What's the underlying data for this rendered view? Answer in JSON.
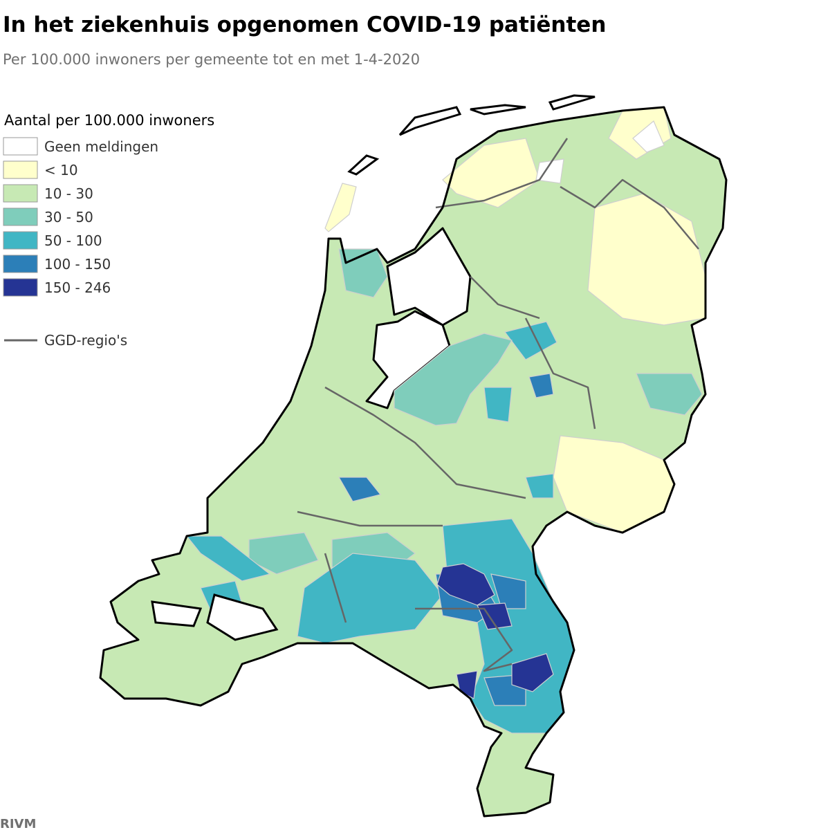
{
  "title": "In het ziekenhuis opgenomen COVID-19 patiënten",
  "subtitle": "Per 100.000 inwoners per gemeente tot en met 1-4-2020",
  "legend": {
    "title": "Aantal per 100.000 inwoners",
    "items": [
      {
        "label": "Geen meldingen",
        "color": "#ffffff"
      },
      {
        "label": "< 10",
        "color": "#ffffcc"
      },
      {
        "label": "10 - 30",
        "color": "#c7e9b4"
      },
      {
        "label": "30 - 50",
        "color": "#7fcdbb"
      },
      {
        "label": "50 - 100",
        "color": "#41b6c4"
      },
      {
        "label": "100 - 150",
        "color": "#2c7fb8"
      },
      {
        "label": "150 - 246",
        "color": "#253494"
      }
    ],
    "boundary": "GGD-regio's"
  },
  "source": "RIVM"
}
